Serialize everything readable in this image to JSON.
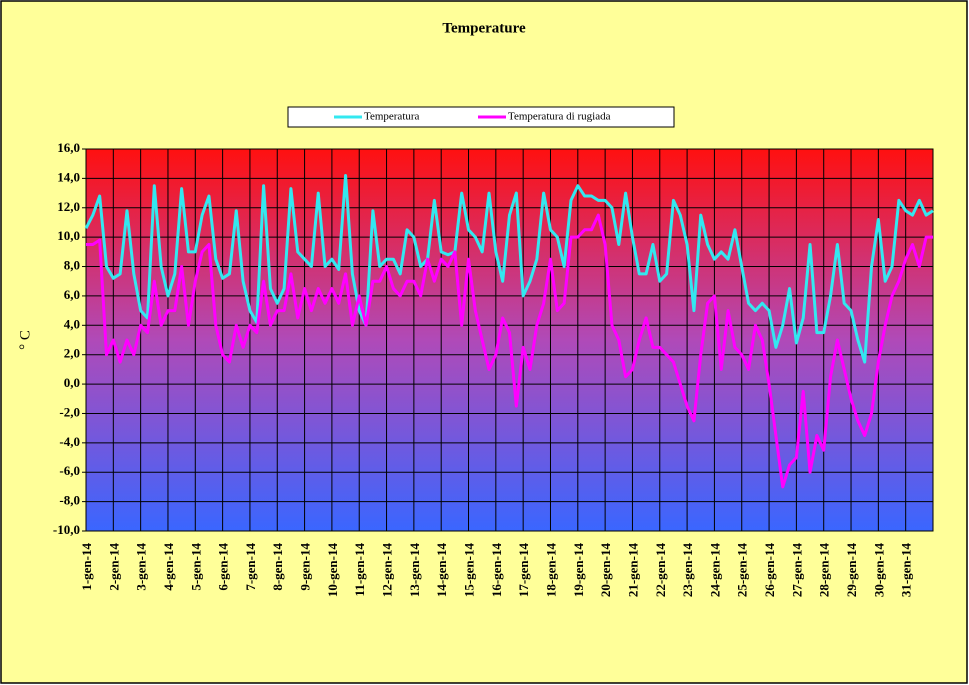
{
  "chart_data": {
    "type": "line",
    "title": "Temperature",
    "y_label": "° C",
    "categories": [
      "1-gen-14",
      null,
      null,
      null,
      "2-gen-14",
      null,
      null,
      null,
      "3-gen-14",
      null,
      null,
      null,
      "4-gen-14",
      null,
      null,
      null,
      "5-gen-14",
      null,
      null,
      null,
      "6-gen-14",
      null,
      null,
      null,
      "7-gen-14",
      null,
      null,
      null,
      "8-gen-14",
      null,
      null,
      null,
      "9-gen-14",
      null,
      null,
      null,
      "10-gen-14",
      null,
      null,
      null,
      "11-gen-14",
      null,
      null,
      null,
      "12-gen-14",
      null,
      null,
      null,
      "13-gen-14",
      null,
      null,
      null,
      "14-gen-14",
      null,
      null,
      null,
      "15-gen-14",
      null,
      null,
      null,
      "16-gen-14",
      null,
      null,
      null,
      "17-gen-14",
      null,
      null,
      null,
      "18-gen-14",
      null,
      null,
      null,
      "19-gen-14",
      null,
      null,
      null,
      "20-gen-14",
      null,
      null,
      null,
      "21-gen-14",
      null,
      null,
      null,
      "22-gen-14",
      null,
      null,
      null,
      "23-gen-14",
      null,
      null,
      null,
      "24-gen-14",
      null,
      null,
      null,
      "25-gen-14",
      null,
      null,
      null,
      "26-gen-14",
      null,
      null,
      null,
      "27-gen-14",
      null,
      null,
      null,
      "28-gen-14",
      null,
      null,
      null,
      "29-gen-14",
      null,
      null,
      null,
      "30-gen-14",
      null,
      null,
      null,
      "31-gen-14",
      null,
      null,
      null,
      null
    ],
    "series": [
      {
        "name": "Temperatura",
        "color": "#33e8f0",
        "values": [
          10.6,
          11.5,
          12.8,
          8.0,
          7.2,
          7.5,
          11.8,
          7.5,
          5.0,
          4.5,
          13.5,
          8.0,
          6.0,
          7.5,
          13.3,
          9.0,
          9.0,
          11.5,
          12.8,
          8.5,
          7.2,
          7.5,
          11.8,
          7.0,
          5.0,
          4.2,
          13.5,
          6.5,
          5.5,
          6.5,
          13.3,
          9.0,
          8.5,
          8.0,
          13.0,
          8.0,
          8.5,
          7.8,
          14.2,
          7.5,
          5.0,
          4.0,
          11.8,
          8.0,
          8.5,
          8.5,
          7.5,
          10.5,
          10.0,
          8.0,
          8.5,
          12.5,
          9.0,
          8.8,
          9.0,
          13.0,
          10.5,
          10.0,
          9.0,
          13.0,
          9.0,
          7.0,
          11.5,
          13.0,
          6.0,
          7.0,
          8.5,
          13.0,
          10.5,
          10.0,
          8.0,
          12.5,
          13.5,
          12.8,
          12.8,
          12.5,
          12.5,
          12.0,
          9.5,
          13.0,
          10.0,
          7.5,
          7.5,
          9.5,
          7.0,
          7.5,
          12.5,
          11.5,
          9.5,
          5.0,
          11.5,
          9.5,
          8.5,
          9.0,
          8.5,
          10.5,
          8.0,
          5.5,
          5.0,
          5.5,
          5.0,
          2.5,
          4.0,
          6.5,
          2.8,
          4.5,
          9.5,
          3.5,
          3.5,
          6.0,
          9.5,
          5.5,
          5.0,
          3.0,
          1.5,
          8.0,
          11.2,
          7.0,
          8.0,
          12.5,
          11.8,
          11.5,
          12.5,
          11.5,
          11.8
        ]
      },
      {
        "name": "Temperatura di rugiada",
        "color": "#ff00ff",
        "values": [
          9.5,
          9.5,
          9.8,
          2.0,
          3.0,
          1.5,
          3.0,
          2.0,
          4.0,
          3.5,
          7.0,
          4.0,
          5.0,
          5.0,
          8.0,
          4.0,
          7.0,
          9.0,
          9.5,
          4.0,
          2.0,
          1.5,
          4.0,
          2.5,
          4.0,
          3.5,
          7.0,
          4.0,
          5.0,
          5.0,
          7.5,
          4.5,
          6.5,
          5.0,
          6.5,
          5.5,
          6.5,
          5.5,
          7.5,
          4.0,
          6.0,
          4.0,
          7.0,
          7.0,
          8.0,
          6.5,
          6.0,
          7.0,
          7.0,
          6.0,
          8.5,
          7.0,
          8.5,
          8.0,
          9.0,
          4.0,
          8.5,
          5.0,
          3.0,
          1.0,
          2.0,
          4.5,
          3.5,
          -1.5,
          2.5,
          1.0,
          4.0,
          5.5,
          8.5,
          5.0,
          5.5,
          10.0,
          10.0,
          10.5,
          10.5,
          11.5,
          9.5,
          4.0,
          3.0,
          0.5,
          1.0,
          3.0,
          4.5,
          2.5,
          2.5,
          2.0,
          1.5,
          0.0,
          -1.5,
          -2.5,
          2.0,
          5.5,
          6.0,
          1.0,
          5.0,
          2.5,
          2.0,
          1.0,
          4.0,
          3.0,
          0.0,
          -3.5,
          -7.0,
          -5.5,
          -5.0,
          -0.5,
          -6.0,
          -3.5,
          -4.5,
          0.5,
          3.0,
          1.0,
          -1.0,
          -2.5,
          -3.5,
          -2.0,
          1.5,
          4.0,
          6.0,
          7.0,
          8.5,
          9.5,
          8.0,
          10.0,
          10.0
        ]
      }
    ],
    "ylim": [
      -10,
      16
    ],
    "yticks": [
      {
        "value": -10,
        "label": "-10,0"
      },
      {
        "value": -8,
        "label": "-8,0"
      },
      {
        "value": -6,
        "label": "-6,0"
      },
      {
        "value": -4,
        "label": "-4,0"
      },
      {
        "value": -2,
        "label": "-2,0"
      },
      {
        "value": 0,
        "label": "0,0"
      },
      {
        "value": 2,
        "label": "2,0"
      },
      {
        "value": 4,
        "label": "4,0"
      },
      {
        "value": 6,
        "label": "6,0"
      },
      {
        "value": 8,
        "label": "8,0"
      },
      {
        "value": 10,
        "label": "10,0"
      },
      {
        "value": 12,
        "label": "12,0"
      },
      {
        "value": 14,
        "label": "14,0"
      },
      {
        "value": 16,
        "label": "16,0"
      }
    ],
    "grid": true,
    "legend": "top"
  }
}
